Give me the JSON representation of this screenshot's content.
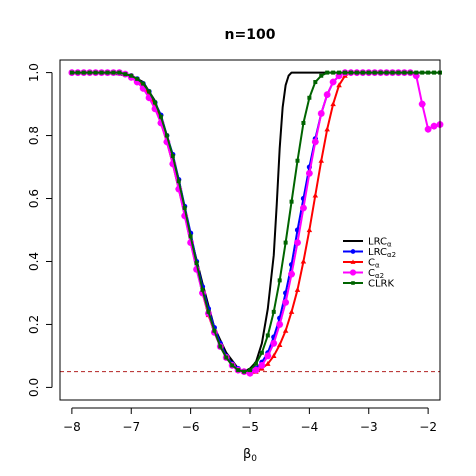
{
  "chart_data": {
    "type": "line",
    "title": "n=100",
    "xlabel": "β₀",
    "ylabel": "",
    "xlim": [
      -8.2,
      -1.8
    ],
    "ylim": [
      -0.04,
      1.04
    ],
    "xticks": [
      -8,
      -7,
      -6,
      -5,
      -4,
      -3,
      -2
    ],
    "xtick_labels": [
      "−8",
      "−7",
      "−6",
      "−5",
      "−4",
      "−3",
      "−2"
    ],
    "yticks": [
      0.0,
      0.2,
      0.4,
      0.6,
      0.8,
      1.0
    ],
    "ytick_labels": [
      "0.0",
      "0.2",
      "0.4",
      "0.6",
      "0.8",
      "1.0"
    ],
    "grid": false,
    "legend_position": "center-right",
    "reference_line": {
      "y": 0.05,
      "color": "#b22222",
      "style": "dashed"
    },
    "series": [
      {
        "name": "LRCα",
        "label_main": "LRC",
        "label_sub": "α",
        "color": "#000000",
        "marker": "none",
        "x": [
          -8.0,
          -7.5,
          -7.0,
          -6.8,
          -6.6,
          -6.4,
          -6.2,
          -6.0,
          -5.8,
          -5.6,
          -5.4,
          -5.2,
          -5.1,
          -5.0,
          -4.9,
          -4.8,
          -4.7,
          -4.6,
          -4.55,
          -4.5,
          -4.45,
          -4.4,
          -4.35,
          -4.3,
          -4.2,
          -4.0,
          -3.0,
          -1.8
        ],
        "y": [
          1.0,
          1.0,
          0.99,
          0.97,
          0.91,
          0.8,
          0.66,
          0.48,
          0.33,
          0.19,
          0.11,
          0.06,
          0.05,
          0.06,
          0.08,
          0.14,
          0.25,
          0.42,
          0.58,
          0.76,
          0.89,
          0.96,
          0.99,
          1.0,
          1.0,
          1.0,
          1.0,
          1.0
        ]
      },
      {
        "name": "LRCα2",
        "label_main": "LRC",
        "label_sub": "α2",
        "color": "#0000ff",
        "marker": "circle",
        "x": [
          -8.0,
          -7.9,
          -7.8,
          -7.7,
          -7.6,
          -7.5,
          -7.4,
          -7.3,
          -7.2,
          -7.1,
          -7.0,
          -6.9,
          -6.8,
          -6.7,
          -6.6,
          -6.5,
          -6.4,
          -6.3,
          -6.2,
          -6.1,
          -6.0,
          -5.9,
          -5.8,
          -5.7,
          -5.6,
          -5.5,
          -5.4,
          -5.3,
          -5.2,
          -5.1,
          -5.0,
          -4.9,
          -4.8,
          -4.7,
          -4.6,
          -4.5,
          -4.4,
          -4.3,
          -4.2,
          -4.1,
          -4.0,
          -3.9,
          -3.8,
          -3.7,
          -3.6,
          -3.5,
          -3.4,
          -3.3,
          -3.2,
          -3.1,
          -3.0
        ],
        "y": [
          1.0,
          1.0,
          1.0,
          1.0,
          1.0,
          1.0,
          1.0,
          1.0,
          1.0,
          0.995,
          0.99,
          0.98,
          0.965,
          0.94,
          0.905,
          0.865,
          0.8,
          0.74,
          0.66,
          0.575,
          0.49,
          0.4,
          0.32,
          0.25,
          0.19,
          0.14,
          0.1,
          0.075,
          0.06,
          0.05,
          0.05,
          0.06,
          0.08,
          0.11,
          0.16,
          0.22,
          0.3,
          0.39,
          0.5,
          0.6,
          0.7,
          0.79,
          0.87,
          0.93,
          0.97,
          0.99,
          1.0,
          1.0,
          1.0,
          1.0,
          1.0
        ]
      },
      {
        "name": "Cα",
        "label_main": "C",
        "label_sub": "α",
        "color": "#ff0000",
        "marker": "triangle",
        "x": [
          -8.0,
          -7.9,
          -7.8,
          -7.7,
          -7.6,
          -7.5,
          -7.4,
          -7.3,
          -7.2,
          -7.1,
          -7.0,
          -6.9,
          -6.8,
          -6.7,
          -6.6,
          -6.5,
          -6.4,
          -6.3,
          -6.2,
          -6.1,
          -6.0,
          -5.9,
          -5.8,
          -5.7,
          -5.6,
          -5.5,
          -5.4,
          -5.3,
          -5.2,
          -5.1,
          -5.0,
          -4.9,
          -4.8,
          -4.7,
          -4.6,
          -4.5,
          -4.4,
          -4.3,
          -4.2,
          -4.1,
          -4.0,
          -3.9,
          -3.8,
          -3.7,
          -3.6,
          -3.5,
          -3.4,
          -3.3,
          -3.2,
          -3.1,
          -3.0
        ],
        "y": [
          1.0,
          1.0,
          1.0,
          1.0,
          1.0,
          1.0,
          1.0,
          1.0,
          1.0,
          0.995,
          0.99,
          0.975,
          0.955,
          0.93,
          0.89,
          0.84,
          0.78,
          0.71,
          0.63,
          0.55,
          0.46,
          0.38,
          0.3,
          0.23,
          0.175,
          0.13,
          0.095,
          0.07,
          0.055,
          0.05,
          0.045,
          0.05,
          0.06,
          0.075,
          0.1,
          0.135,
          0.18,
          0.24,
          0.31,
          0.4,
          0.5,
          0.61,
          0.72,
          0.82,
          0.9,
          0.96,
          0.99,
          1.0,
          1.0,
          1.0,
          1.0
        ]
      },
      {
        "name": "Cα2",
        "label_main": "C",
        "label_sub": "α2",
        "color": "#ff00ff",
        "marker": "asterisk",
        "x": [
          -8.0,
          -7.9,
          -7.8,
          -7.7,
          -7.6,
          -7.5,
          -7.4,
          -7.3,
          -7.2,
          -7.1,
          -7.0,
          -6.9,
          -6.8,
          -6.7,
          -6.6,
          -6.5,
          -6.4,
          -6.3,
          -6.2,
          -6.1,
          -6.0,
          -5.9,
          -5.8,
          -5.7,
          -5.6,
          -5.5,
          -5.4,
          -5.3,
          -5.2,
          -5.1,
          -5.0,
          -4.9,
          -4.8,
          -4.7,
          -4.6,
          -4.5,
          -4.4,
          -4.3,
          -4.2,
          -4.1,
          -4.0,
          -3.9,
          -3.8,
          -3.7,
          -3.6,
          -3.5,
          -3.4,
          -3.3,
          -3.2,
          -3.1,
          -3.0,
          -2.9,
          -2.8,
          -2.7,
          -2.6,
          -2.5,
          -2.4,
          -2.3,
          -2.2,
          -2.1,
          -2.0,
          -1.9,
          -1.8
        ],
        "y": [
          1.0,
          1.0,
          1.0,
          1.0,
          1.0,
          1.0,
          1.0,
          1.0,
          1.0,
          0.995,
          0.985,
          0.97,
          0.95,
          0.92,
          0.885,
          0.84,
          0.78,
          0.71,
          0.63,
          0.545,
          0.46,
          0.375,
          0.3,
          0.235,
          0.175,
          0.13,
          0.095,
          0.07,
          0.055,
          0.05,
          0.045,
          0.055,
          0.07,
          0.1,
          0.14,
          0.2,
          0.27,
          0.36,
          0.46,
          0.57,
          0.68,
          0.78,
          0.87,
          0.93,
          0.97,
          0.99,
          1.0,
          1.0,
          1.0,
          1.0,
          1.0,
          1.0,
          1.0,
          1.0,
          1.0,
          1.0,
          1.0,
          1.0,
          0.99,
          0.9,
          0.82,
          0.83,
          0.835
        ]
      },
      {
        "name": "CLRK",
        "label_main": "CLRK",
        "label_sub": "",
        "color": "#006400",
        "marker": "square",
        "x": [
          -8.0,
          -7.9,
          -7.8,
          -7.7,
          -7.6,
          -7.5,
          -7.4,
          -7.3,
          -7.2,
          -7.1,
          -7.0,
          -6.9,
          -6.8,
          -6.7,
          -6.6,
          -6.5,
          -6.4,
          -6.3,
          -6.2,
          -6.1,
          -6.0,
          -5.9,
          -5.8,
          -5.7,
          -5.6,
          -5.5,
          -5.4,
          -5.3,
          -5.2,
          -5.1,
          -5.0,
          -4.9,
          -4.8,
          -4.7,
          -4.6,
          -4.5,
          -4.4,
          -4.3,
          -4.2,
          -4.1,
          -4.0,
          -3.9,
          -3.8,
          -3.7,
          -3.6,
          -3.5,
          -3.4,
          -3.3,
          -3.2,
          -3.1,
          -3.0,
          -2.9,
          -2.8,
          -2.7,
          -2.6,
          -2.5,
          -2.4,
          -2.3,
          -2.2,
          -2.1,
          -2.0,
          -1.9,
          -1.8
        ],
        "y": [
          1.0,
          1.0,
          1.0,
          1.0,
          1.0,
          1.0,
          1.0,
          1.0,
          1.0,
          0.995,
          0.99,
          0.98,
          0.965,
          0.94,
          0.905,
          0.86,
          0.8,
          0.735,
          0.655,
          0.57,
          0.48,
          0.395,
          0.31,
          0.24,
          0.18,
          0.13,
          0.095,
          0.07,
          0.055,
          0.05,
          0.055,
          0.075,
          0.11,
          0.165,
          0.24,
          0.34,
          0.46,
          0.59,
          0.72,
          0.84,
          0.92,
          0.97,
          0.99,
          1.0,
          1.0,
          1.0,
          1.0,
          1.0,
          1.0,
          1.0,
          1.0,
          1.0,
          1.0,
          1.0,
          1.0,
          1.0,
          1.0,
          1.0,
          1.0,
          1.0,
          1.0,
          1.0,
          1.0
        ]
      }
    ]
  }
}
